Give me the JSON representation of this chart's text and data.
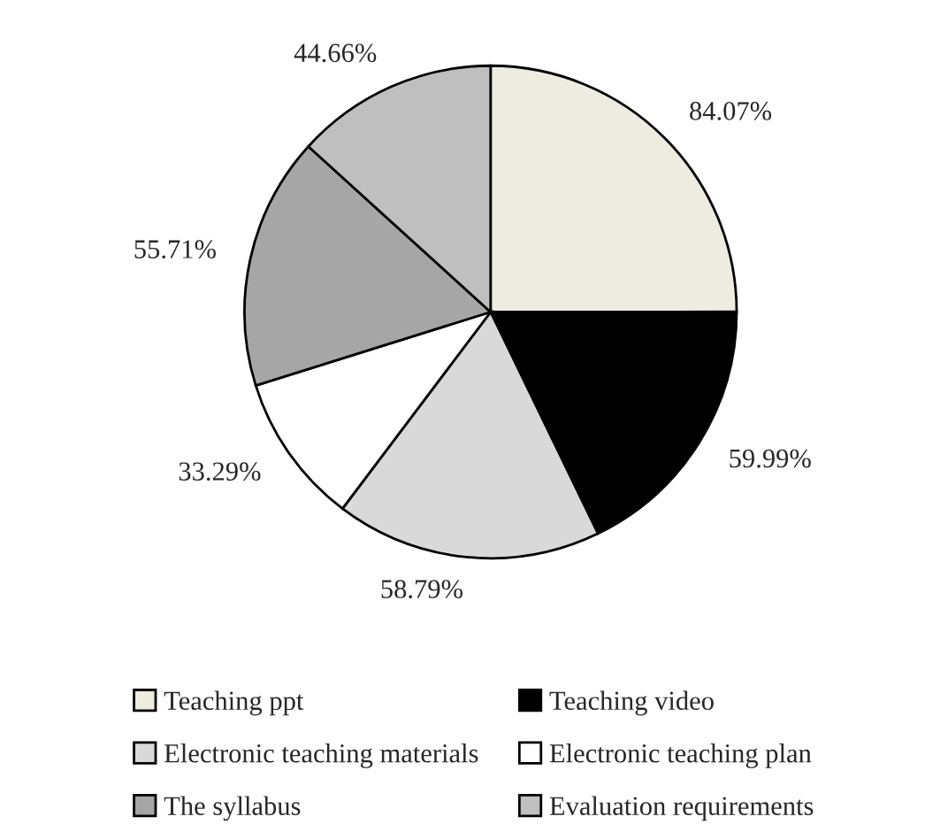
{
  "chart_data": {
    "type": "pie",
    "categories": [
      "Teaching ppt",
      "Teaching video",
      "Electronic teaching materials",
      "Electronic teaching plan",
      "The syllabus",
      "Evaluation requirements"
    ],
    "values": [
      84.07,
      59.99,
      58.79,
      33.29,
      55.71,
      44.66
    ],
    "colors": [
      "#eeebe0",
      "#000000",
      "#d9d9d9",
      "#ffffff",
      "#a6a6a6",
      "#bfbfbf"
    ],
    "value_labels": [
      "84.07%",
      "59.99%",
      "58.79%",
      "33.29%",
      "55.71%",
      "44.66%"
    ],
    "legend": "bottom"
  }
}
